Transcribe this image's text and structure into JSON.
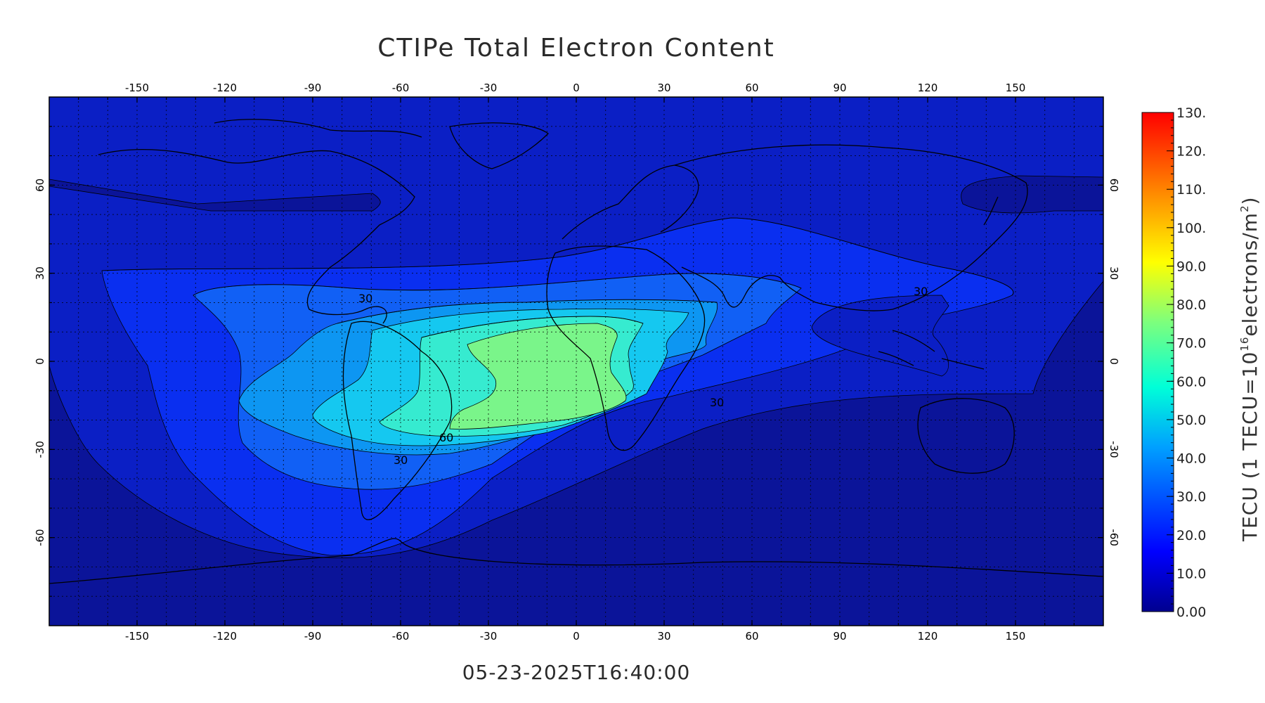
{
  "title": "CTIPe Total Electron Content",
  "timestamp": "05-23-2025T16:40:00",
  "map": {
    "lon_ticks": [
      "-150",
      "-120",
      "-90",
      "-60",
      "-30",
      "0",
      "30",
      "60",
      "90",
      "120",
      "150"
    ],
    "lat_ticks": [
      "60",
      "30",
      "0",
      "-30",
      "-60"
    ],
    "contour_labels": [
      "60",
      "30",
      "30",
      "30",
      "30"
    ]
  },
  "colorbar": {
    "label_prefix": "TECU (1 TECU=10",
    "label_exp": "16",
    "label_mid": "electrons/m",
    "label_sq": "2",
    "label_suffix": ")",
    "tick_labels": [
      "130.",
      "120.",
      "110.",
      "100.",
      "90.0",
      "80.0",
      "70.0",
      "60.0",
      "50.0",
      "40.0",
      "30.0",
      "20.0",
      "10.0",
      "0.00"
    ]
  },
  "colors": {
    "deep": "#0b1499",
    "level_10": "#0b1fc5",
    "level_20": "#0a2ff0",
    "level_30": "#1160f5",
    "level_40": "#0d96f2",
    "level_50": "#15c8f0",
    "level_60": "#36ebd0",
    "level_70": "#7af58a"
  },
  "chart_data": {
    "type": "heatmap",
    "title": "CTIPe Total Electron Content",
    "xlabel": "",
    "ylabel": "",
    "colorbar_label": "TECU (1 TECU=10^16 electrons/m^2)",
    "xlim": [
      -180,
      180
    ],
    "ylim": [
      -90,
      90
    ],
    "zlim": [
      0,
      130
    ],
    "contour_levels": [
      10,
      20,
      30,
      40,
      50,
      60,
      70
    ],
    "peak_region": {
      "lon_range": [
        -40,
        15
      ],
      "lat_range": [
        -25,
        15
      ],
      "value_range": [
        60,
        70
      ]
    },
    "grid": true,
    "timestamp": "05-23-2025T16:40:00"
  }
}
